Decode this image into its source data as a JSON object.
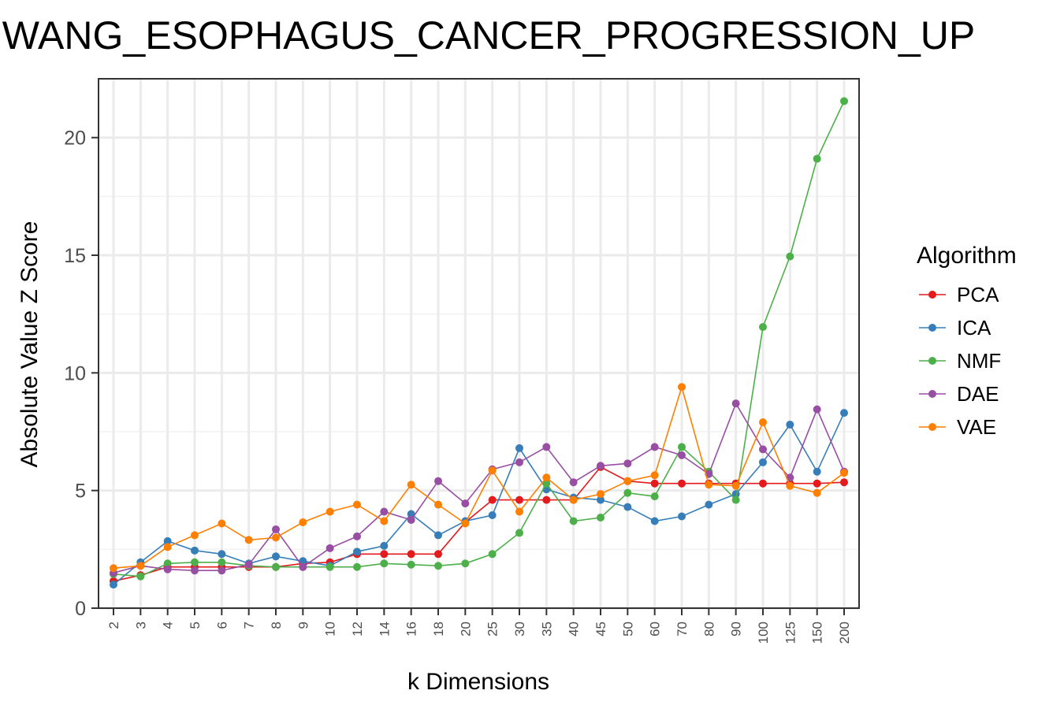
{
  "chart_data": {
    "type": "line",
    "title": "WANG_ESOPHAGUS_CANCER_PROGRESSION_UP",
    "xlabel": "k Dimensions",
    "ylabel": "Absolute Value Z Score",
    "ylim": [
      0,
      22.5
    ],
    "yticks": [
      0,
      5,
      10,
      15,
      20
    ],
    "grid": true,
    "legend": {
      "title": "Algorithm",
      "position": "right"
    },
    "categories": [
      "2",
      "3",
      "4",
      "5",
      "6",
      "7",
      "8",
      "9",
      "10",
      "12",
      "14",
      "16",
      "18",
      "20",
      "25",
      "30",
      "35",
      "40",
      "45",
      "50",
      "60",
      "70",
      "80",
      "90",
      "100",
      "125",
      "150",
      "200"
    ],
    "series": [
      {
        "name": "PCA",
        "color": "#e41a1c",
        "values": [
          1.15,
          1.4,
          1.75,
          1.75,
          1.75,
          1.75,
          1.75,
          1.9,
          1.95,
          2.3,
          2.3,
          2.3,
          2.3,
          3.65,
          4.6,
          4.6,
          4.6,
          4.6,
          6.0,
          5.4,
          5.3,
          5.3,
          5.3,
          5.3,
          5.3,
          5.3,
          5.3,
          5.35
        ]
      },
      {
        "name": "ICA",
        "color": "#377eb8",
        "values": [
          1.0,
          1.95,
          2.85,
          2.45,
          2.3,
          1.9,
          2.2,
          2.0,
          1.8,
          2.4,
          2.65,
          4.0,
          3.1,
          3.7,
          3.95,
          6.8,
          5.05,
          4.7,
          4.6,
          4.3,
          3.7,
          3.9,
          4.4,
          4.85,
          6.2,
          7.8,
          5.8,
          8.3
        ]
      },
      {
        "name": "NMF",
        "color": "#4daf4a",
        "values": [
          1.45,
          1.35,
          1.9,
          1.95,
          1.95,
          1.8,
          1.75,
          1.75,
          1.75,
          1.75,
          1.9,
          1.85,
          1.8,
          1.9,
          2.3,
          3.2,
          5.3,
          3.7,
          3.85,
          4.9,
          4.75,
          6.85,
          5.8,
          4.6,
          11.95,
          14.95,
          19.1,
          21.55
        ]
      },
      {
        "name": "DAE",
        "color": "#984ea3",
        "values": [
          1.5,
          1.8,
          1.65,
          1.6,
          1.6,
          1.85,
          3.35,
          1.75,
          2.55,
          3.05,
          4.1,
          3.75,
          5.4,
          4.45,
          5.9,
          6.2,
          6.85,
          5.35,
          6.05,
          6.15,
          6.85,
          6.5,
          5.7,
          8.7,
          6.75,
          5.55,
          8.45,
          5.8
        ]
      },
      {
        "name": "VAE",
        "color": "#ff7f00",
        "values": [
          1.7,
          1.8,
          2.6,
          3.1,
          3.6,
          2.9,
          3.0,
          3.65,
          4.1,
          4.4,
          3.7,
          5.25,
          4.4,
          3.6,
          5.85,
          4.1,
          5.55,
          4.6,
          4.85,
          5.4,
          5.65,
          9.4,
          5.25,
          5.2,
          7.9,
          5.2,
          4.9,
          5.75
        ]
      }
    ]
  }
}
